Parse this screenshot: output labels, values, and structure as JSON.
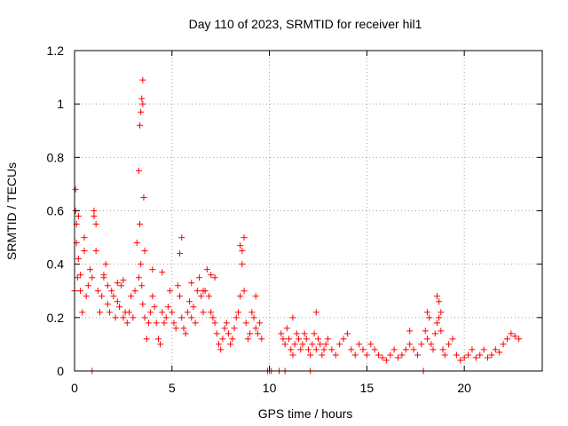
{
  "chart_data": {
    "type": "scatter",
    "title": "Day 110 of 2023, SRMTID for receiver hil1",
    "xlabel": "GPS time / hours",
    "ylabel": "SRMTID / TECUs",
    "xlim": [
      0,
      24
    ],
    "ylim": [
      0,
      1.2
    ],
    "xticks": [
      0,
      5,
      10,
      15,
      20
    ],
    "yticks": [
      0,
      0.2,
      0.4,
      0.6,
      0.8,
      1,
      1.2
    ],
    "ytick_labels": [
      "0",
      "0.2",
      "0.4",
      "0.6",
      "0.8",
      "1",
      "1.2"
    ],
    "grid": true,
    "marker": "+",
    "color": "#ff0000",
    "series": [
      {
        "name": "SRMTID",
        "x": [
          0.0,
          0.05,
          0.1,
          0.15,
          0.2,
          0.3,
          0.4,
          0.5,
          0.6,
          0.7,
          0.8,
          0.9,
          1.0,
          1.1,
          1.2,
          1.3,
          1.4,
          1.5,
          1.6,
          1.7,
          1.8,
          1.9,
          2.0,
          2.1,
          2.2,
          2.3,
          2.4,
          2.5,
          2.6,
          2.7,
          2.8,
          2.9,
          3.0,
          3.1,
          3.2,
          3.3,
          3.35,
          3.4,
          3.45,
          3.5,
          3.6,
          3.7,
          3.8,
          3.9,
          4.0,
          4.1,
          4.2,
          4.3,
          4.4,
          4.5,
          4.6,
          4.7,
          4.8,
          4.9,
          5.0,
          5.1,
          5.2,
          5.3,
          5.4,
          5.5,
          5.6,
          5.7,
          5.8,
          5.9,
          6.0,
          6.1,
          6.2,
          6.3,
          6.4,
          6.5,
          6.6,
          6.7,
          6.8,
          6.9,
          7.0,
          7.1,
          7.2,
          7.3,
          7.4,
          7.5,
          7.6,
          7.7,
          7.8,
          7.9,
          8.0,
          8.1,
          8.2,
          8.3,
          8.4,
          8.5,
          8.6,
          8.7,
          8.8,
          8.9,
          9.0,
          9.1,
          9.2,
          9.3,
          9.4,
          9.5,
          9.6,
          10.6,
          10.7,
          10.8,
          10.9,
          11.0,
          11.1,
          11.2,
          11.3,
          11.4,
          11.5,
          11.6,
          11.7,
          11.8,
          11.9,
          12.0,
          12.1,
          12.2,
          12.3,
          12.4,
          12.5,
          12.6,
          12.7,
          12.8,
          12.9,
          13.0,
          13.2,
          13.4,
          13.6,
          13.8,
          14.0,
          14.2,
          14.4,
          14.6,
          14.8,
          15.0,
          15.2,
          15.4,
          15.6,
          15.8,
          16.0,
          16.2,
          16.4,
          16.6,
          16.8,
          17.0,
          17.2,
          17.4,
          17.6,
          17.8,
          18.0,
          18.1,
          18.2,
          18.3,
          18.4,
          18.5,
          18.6,
          18.7,
          18.8,
          18.9,
          19.0,
          19.2,
          19.4,
          19.6,
          19.8,
          20.0,
          20.2,
          20.4,
          20.6,
          20.8,
          21.0,
          21.2,
          21.4,
          21.6,
          21.8,
          22.0,
          22.2,
          22.4,
          22.6,
          22.8,
          0.05,
          0.1,
          0.2,
          0.3,
          0.5,
          1.0,
          1.1,
          1.5,
          1.7,
          2.2,
          2.5,
          3.3,
          3.35,
          3.4,
          3.45,
          3.5,
          3.5,
          3.55,
          3.6,
          4.0,
          4.5,
          5.4,
          5.5,
          6.0,
          6.6,
          7.0,
          7.2,
          8.5,
          8.6,
          8.7,
          9.3,
          11.2,
          12.4,
          17.2,
          18.1,
          18.6,
          18.7,
          18.8,
          0.9,
          9.9,
          10.0,
          10.1,
          10.5,
          10.8,
          12.1,
          17.9
        ],
        "y": [
          0.3,
          0.68,
          0.55,
          0.35,
          0.42,
          0.3,
          0.22,
          0.45,
          0.28,
          0.32,
          0.38,
          0.35,
          0.58,
          0.45,
          0.3,
          0.22,
          0.28,
          0.35,
          0.4,
          0.25,
          0.22,
          0.3,
          0.28,
          0.2,
          0.26,
          0.24,
          0.32,
          0.2,
          0.22,
          0.18,
          0.22,
          0.28,
          0.2,
          0.3,
          0.48,
          0.35,
          0.55,
          0.4,
          0.32,
          0.25,
          0.2,
          0.12,
          0.18,
          0.22,
          0.28,
          0.24,
          0.18,
          0.12,
          0.1,
          0.22,
          0.18,
          0.2,
          0.24,
          0.3,
          0.22,
          0.18,
          0.16,
          0.32,
          0.28,
          0.2,
          0.16,
          0.14,
          0.22,
          0.26,
          0.2,
          0.24,
          0.18,
          0.3,
          0.35,
          0.28,
          0.22,
          0.3,
          0.38,
          0.28,
          0.22,
          0.2,
          0.18,
          0.14,
          0.1,
          0.08,
          0.12,
          0.16,
          0.18,
          0.14,
          0.1,
          0.12,
          0.16,
          0.2,
          0.22,
          0.28,
          0.45,
          0.3,
          0.18,
          0.12,
          0.14,
          0.22,
          0.2,
          0.16,
          0.14,
          0.18,
          0.12,
          0.14,
          0.12,
          0.1,
          0.16,
          0.12,
          0.08,
          0.06,
          0.1,
          0.14,
          0.12,
          0.08,
          0.1,
          0.14,
          0.12,
          0.08,
          0.06,
          0.1,
          0.14,
          0.08,
          0.12,
          0.1,
          0.06,
          0.08,
          0.1,
          0.12,
          0.08,
          0.06,
          0.1,
          0.12,
          0.14,
          0.08,
          0.06,
          0.1,
          0.08,
          0.06,
          0.1,
          0.08,
          0.06,
          0.05,
          0.04,
          0.06,
          0.08,
          0.05,
          0.06,
          0.08,
          0.1,
          0.08,
          0.06,
          0.1,
          0.15,
          0.12,
          0.2,
          0.1,
          0.08,
          0.14,
          0.18,
          0.2,
          0.15,
          0.08,
          0.06,
          0.1,
          0.12,
          0.06,
          0.04,
          0.05,
          0.06,
          0.08,
          0.05,
          0.06,
          0.08,
          0.05,
          0.06,
          0.08,
          0.07,
          0.1,
          0.12,
          0.14,
          0.13,
          0.12,
          0.6,
          0.48,
          0.58,
          0.36,
          0.5,
          0.6,
          0.55,
          0.36,
          0.32,
          0.33,
          0.34,
          0.75,
          0.92,
          0.97,
          1.02,
          1.09,
          1.0,
          0.65,
          0.45,
          0.38,
          0.37,
          0.44,
          0.5,
          0.33,
          0.3,
          0.36,
          0.35,
          0.47,
          0.4,
          0.5,
          0.28,
          0.2,
          0.22,
          0.15,
          0.22,
          0.28,
          0.26,
          0.22,
          0.0,
          0.0,
          0.0,
          0.0,
          0.0,
          0.0,
          0.0,
          0.0
        ]
      }
    ]
  }
}
